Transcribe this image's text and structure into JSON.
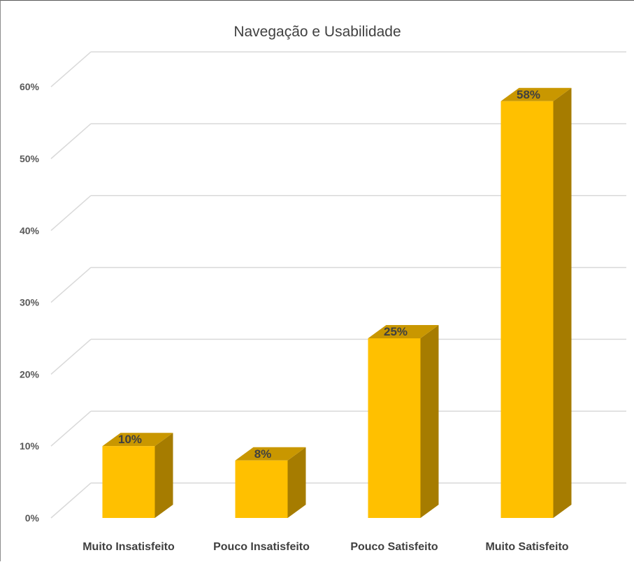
{
  "chart_data": {
    "type": "bar",
    "title": "Navegação e Usabilidade",
    "categories": [
      "Muito Insatisfeito",
      "Pouco Insatisfeito",
      "Pouco Satisfeito",
      "Muito Satisfeito"
    ],
    "values": [
      10,
      8,
      25,
      58
    ],
    "data_labels": [
      "10%",
      "8%",
      "25%",
      "58%"
    ],
    "y_ticks": [
      0,
      10,
      20,
      30,
      40,
      50,
      60
    ],
    "y_tick_labels": [
      "0%",
      "10%",
      "20%",
      "30%",
      "40%",
      "50%",
      "60%"
    ],
    "ylim": [
      0,
      60
    ],
    "xlabel": "",
    "ylabel": "",
    "grid": true,
    "legend": "none",
    "style": "3d-column",
    "colors": {
      "bar_front": "#FFC000",
      "bar_side": "#A67C00",
      "bar_top": "#C99700",
      "grid": "#D9D9D9",
      "title": "#404040"
    }
  }
}
